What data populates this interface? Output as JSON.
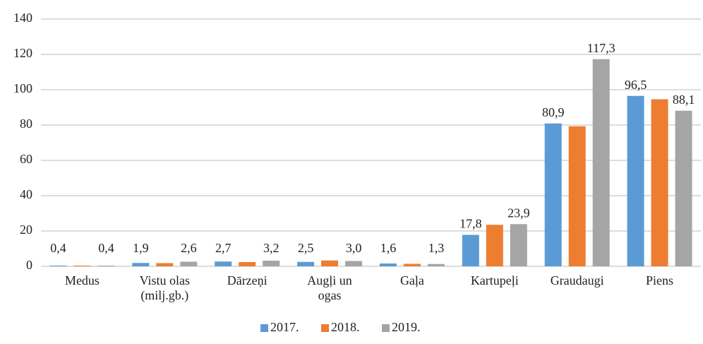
{
  "chart_data": {
    "type": "bar",
    "categories": [
      "Medus",
      "Vistu olas (milj.gb.)",
      "Dārzeņi",
      "Augļi un ogas",
      "Gaļa",
      "Kartupeļi",
      "Graudaugi",
      "Piens"
    ],
    "series": [
      {
        "name": "2017.",
        "color": "#5b9bd5",
        "values": [
          0.4,
          1.9,
          2.7,
          2.5,
          1.6,
          17.8,
          80.9,
          96.5
        ],
        "value_labels": [
          "0,4",
          "1,9",
          "2,7",
          "2,5",
          "1,6",
          "17,8",
          "80,9",
          "96,5"
        ]
      },
      {
        "name": "2018.",
        "color": "#ed7d31",
        "values": [
          0.4,
          1.8,
          2.4,
          3.3,
          1.4,
          23.5,
          79.3,
          94.6
        ]
      },
      {
        "name": "2019.",
        "color": "#a5a5a5",
        "values": [
          0.4,
          2.6,
          3.2,
          3.0,
          1.3,
          23.9,
          117.3,
          88.1
        ],
        "value_labels": [
          "0,4",
          "2,6",
          "3,2",
          "3,0",
          "1,3",
          "23,9",
          "117,3",
          "88,1"
        ]
      }
    ],
    "ylim": [
      0,
      140
    ],
    "yticks": [
      0,
      20,
      40,
      60,
      80,
      100,
      120,
      140
    ],
    "grid": true,
    "legend": "bottom"
  }
}
